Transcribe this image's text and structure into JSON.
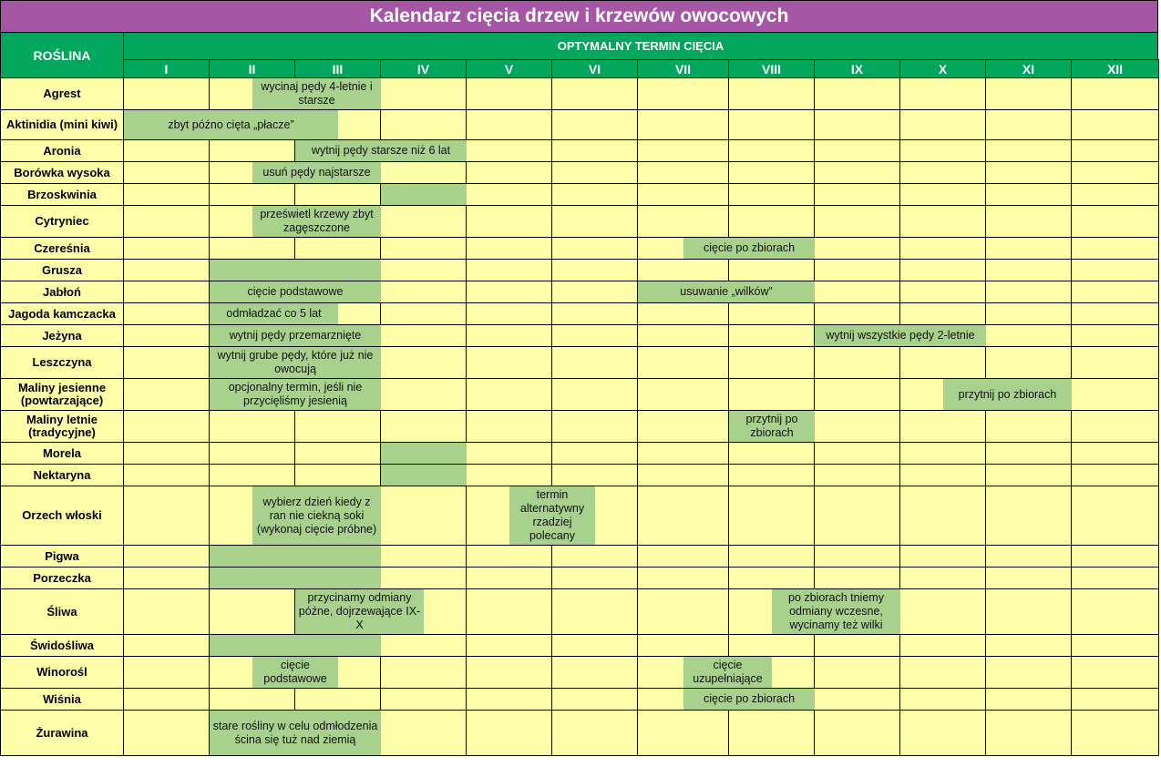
{
  "title": "Kalendarz cięcia drzew i krzewów owocowych",
  "header": {
    "plant_label": "ROŚLINA",
    "period_label": "OPTYMALNY TERMIN CIĘCIA",
    "months": [
      "I",
      "II",
      "III",
      "IV",
      "V",
      "VI",
      "VII",
      "VIII",
      "IX",
      "X",
      "XI",
      "XII"
    ]
  },
  "colors": {
    "title_bg": "#A557A6",
    "header_bg": "#00A65C",
    "cell_bg": "#FFFFAA",
    "bar_bg": "#A9D18E"
  },
  "rows": [
    {
      "plant": "Agrest",
      "bars": [
        {
          "start": 2.5,
          "end": 4,
          "text": "wycinaj pędy 4-letnie i starsze"
        }
      ]
    },
    {
      "plant": "Aktinidia (mini kiwi)",
      "bars": [
        {
          "start": 1,
          "end": 3.5,
          "text": "zbyt późno cięta „płacze”"
        }
      ]
    },
    {
      "plant": "Aronia",
      "bars": [
        {
          "start": 3,
          "end": 5,
          "text": "wytnij pędy starsze niż 6 lat"
        }
      ]
    },
    {
      "plant": "Borówka wysoka",
      "bars": [
        {
          "start": 2.5,
          "end": 4,
          "text": "usuń pędy najstarsze"
        }
      ]
    },
    {
      "plant": "Brzoskwinia",
      "bars": [
        {
          "start": 4,
          "end": 5,
          "text": ""
        }
      ]
    },
    {
      "plant": "Cytryniec",
      "bars": [
        {
          "start": 2.5,
          "end": 4,
          "text": "prześwietl krzewy zbyt zagęszczone"
        }
      ]
    },
    {
      "plant": "Czereśnia",
      "bars": [
        {
          "start": 7.5,
          "end": 9,
          "text": "cięcie po zbiorach"
        }
      ]
    },
    {
      "plant": "Grusza",
      "bars": [
        {
          "start": 2,
          "end": 4,
          "text": ""
        }
      ]
    },
    {
      "plant": "Jabłoń",
      "bars": [
        {
          "start": 2,
          "end": 4,
          "text": "cięcie podstawowe"
        },
        {
          "start": 7,
          "end": 9,
          "text": "usuwanie „wilków”"
        }
      ]
    },
    {
      "plant": "Jagoda kamczacka",
      "bars": [
        {
          "start": 2,
          "end": 3.5,
          "text": "odmładzać co 5 lat"
        }
      ]
    },
    {
      "plant": "Jeżyna",
      "bars": [
        {
          "start": 2,
          "end": 4,
          "text": "wytnij pędy przemarznięte"
        },
        {
          "start": 9,
          "end": 11,
          "text": "wytnij wszystkie pędy 2-letnie"
        }
      ]
    },
    {
      "plant": "Leszczyna",
      "bars": [
        {
          "start": 2,
          "end": 4,
          "text": "wytnij grube pędy, które już nie owocują"
        }
      ]
    },
    {
      "plant": "Maliny jesienne (powtarzające)",
      "bars": [
        {
          "start": 2,
          "end": 4,
          "text": "opcjonalny termin, jeśli nie przycięliśmy jesienią"
        },
        {
          "start": 10.5,
          "end": 12,
          "text": "przytnij po zbiorach"
        }
      ]
    },
    {
      "plant": "Maliny letnie (tradycyjne)",
      "bars": [
        {
          "start": 8,
          "end": 9,
          "text": "przytnij po zbiorach"
        }
      ]
    },
    {
      "plant": "Morela",
      "bars": [
        {
          "start": 4,
          "end": 5,
          "text": ""
        }
      ]
    },
    {
      "plant": "Nektaryna",
      "bars": [
        {
          "start": 4,
          "end": 5,
          "text": ""
        }
      ]
    },
    {
      "plant": "Orzech włoski",
      "bars": [
        {
          "start": 2.5,
          "end": 4,
          "text": "wybierz dzień kiedy z ran nie ciekną soki (wykonaj cięcie próbne)"
        },
        {
          "start": 5.5,
          "end": 6.5,
          "text": "termin alternatywny rzadziej polecany"
        }
      ]
    },
    {
      "plant": "Pigwa",
      "bars": [
        {
          "start": 2,
          "end": 4,
          "text": ""
        }
      ]
    },
    {
      "plant": "Porzeczka",
      "bars": [
        {
          "start": 2,
          "end": 4,
          "text": ""
        }
      ]
    },
    {
      "plant": "Śliwa",
      "bars": [
        {
          "start": 3,
          "end": 4.5,
          "text": "przycinamy odmiany późne, dojrzewające IX-X"
        },
        {
          "start": 8.5,
          "end": 10,
          "text": "po zbiorach tniemy odmiany wczesne, wycinamy też wilki"
        }
      ]
    },
    {
      "plant": "Świdośliwa",
      "bars": [
        {
          "start": 2,
          "end": 4,
          "text": ""
        }
      ]
    },
    {
      "plant": "Winorośl",
      "bars": [
        {
          "start": 2.5,
          "end": 3.5,
          "text": "cięcie podstawowe"
        },
        {
          "start": 7.5,
          "end": 8.5,
          "text": "cięcie uzupełniające"
        }
      ]
    },
    {
      "plant": "Wiśnia",
      "bars": [
        {
          "start": 7.5,
          "end": 9,
          "text": "cięcie po zbiorach"
        }
      ]
    },
    {
      "plant": "Żurawina",
      "bars": [
        {
          "start": 2,
          "end": 4,
          "text": "stare rośliny w celu odmłodzenia ścina się tuż nad ziemią"
        }
      ]
    }
  ]
}
